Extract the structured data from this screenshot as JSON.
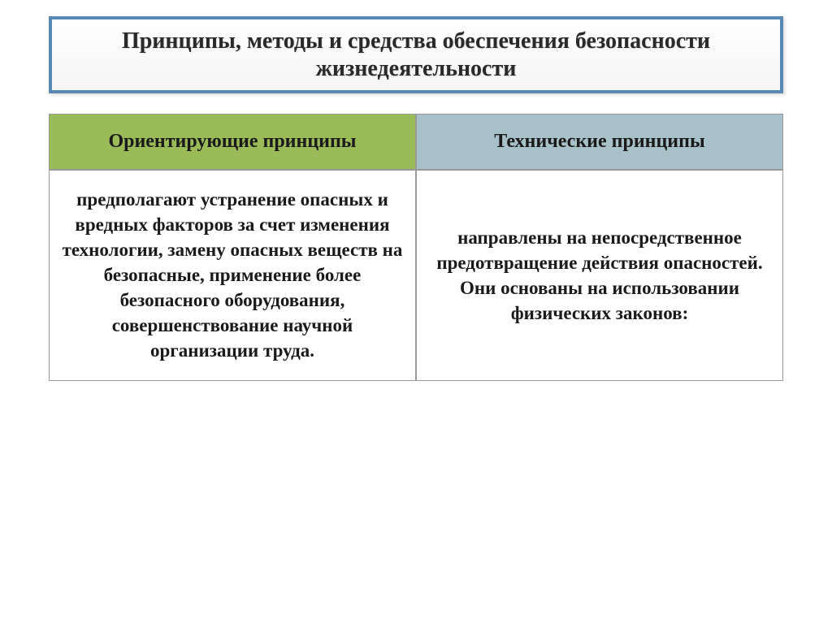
{
  "slide": {
    "title": "Принципы, методы и средства обеспечения безопасности жизнедеятельности",
    "table": {
      "header_left": "Ориентирующие принципы",
      "header_right": "Технические принципы",
      "content_left": "предполагают устранение опасных и вредных факторов за счет изменения технологии, замену опасных веществ на безопасные, применение более безопасного оборудования, совершенствование научной организации труда.",
      "content_right": "направлены на непосредственное предотвращение действия опасностей. Они основаны на использовании физических законов:"
    },
    "colors": {
      "title_border": "#5889b5",
      "header_left_bg": "#9bbb59",
      "header_right_bg": "#a8c0c8",
      "cell_border": "#999999",
      "text_color": "#1a1a1a"
    },
    "typography": {
      "title_fontsize": 28,
      "header_fontsize": 24,
      "content_fontsize": 23,
      "font_family": "Georgia, Times New Roman, serif"
    }
  }
}
